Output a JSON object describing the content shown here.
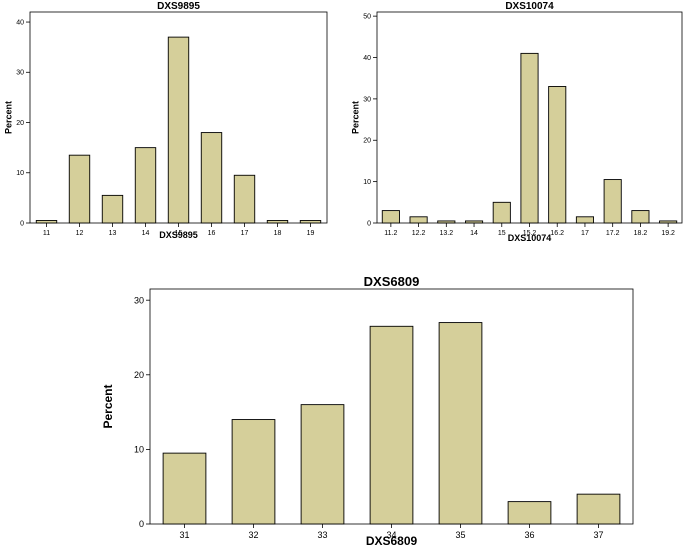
{
  "chart_data": [
    {
      "type": "bar",
      "title": "DXS9895",
      "xlabel": "DXS9895",
      "ylabel": "Percent",
      "categories": [
        "11",
        "12",
        "13",
        "14",
        "15",
        "16",
        "17",
        "18",
        "19"
      ],
      "values": [
        0.5,
        13.5,
        5.5,
        15,
        37,
        18,
        9.5,
        0.5,
        0.5
      ],
      "ylim": [
        0,
        42
      ],
      "yticks": [
        0,
        10,
        20,
        30,
        40
      ],
      "bar_color": "#d5cf9a",
      "grid": false,
      "legend": "none"
    },
    {
      "type": "bar",
      "title": "DXS10074",
      "xlabel": "DXS10074",
      "ylabel": "Percent",
      "categories": [
        "11.2",
        "12.2",
        "13.2",
        "14",
        "15",
        "15.2",
        "16.2",
        "17",
        "17.2",
        "18.2",
        "19.2"
      ],
      "values": [
        3,
        1.5,
        0.5,
        0.5,
        5,
        41,
        33,
        1.5,
        10.5,
        3,
        0.5
      ],
      "ylim": [
        0,
        51
      ],
      "yticks": [
        0,
        10,
        20,
        30,
        40,
        50
      ],
      "bar_color": "#d5cf9a",
      "grid": false,
      "legend": "none"
    },
    {
      "type": "bar",
      "title": "DXS6809",
      "xlabel": "DXS6809",
      "ylabel": "Percent",
      "categories": [
        "31",
        "32",
        "33",
        "34",
        "35",
        "36",
        "37"
      ],
      "values": [
        9.5,
        14,
        16,
        26.5,
        27,
        3,
        4
      ],
      "ylim": [
        0,
        31.5
      ],
      "yticks": [
        0,
        10,
        20,
        30
      ],
      "bar_color": "#d5cf9a",
      "grid": false,
      "legend": "none"
    }
  ]
}
